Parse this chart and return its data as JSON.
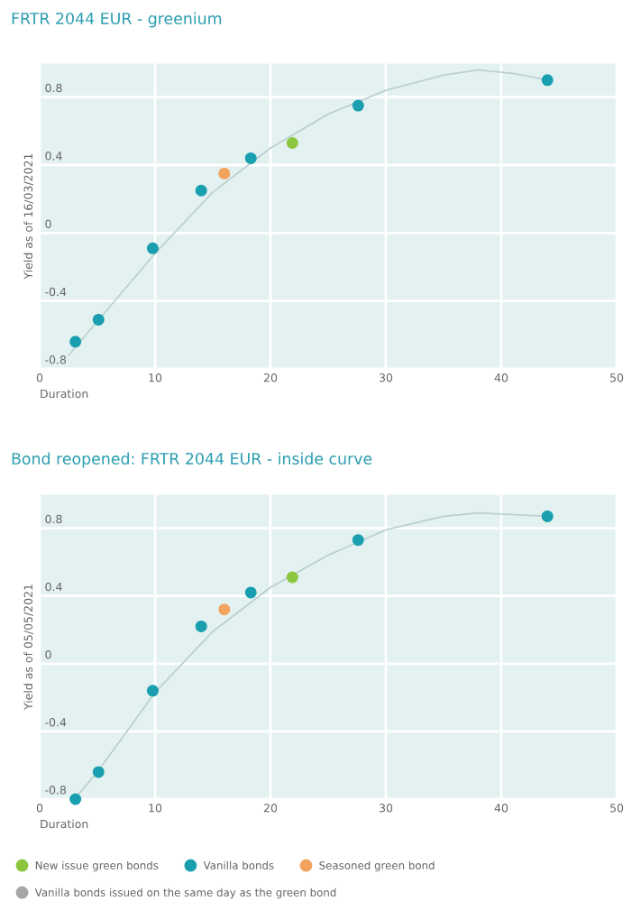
{
  "chart_data": [
    {
      "type": "scatter",
      "title": "FRTR 2044 EUR - greenium",
      "xlabel": "Duration",
      "ylabel": "Yield as of 16/03/2021",
      "xlim": [
        0,
        50
      ],
      "xticks": [
        0,
        10,
        20,
        30,
        40,
        50
      ],
      "ylim": [
        -0.8,
        1.0
      ],
      "yticks": [
        -0.8,
        -0.4,
        0,
        0.4,
        0.8
      ],
      "grid": true,
      "legend": false,
      "marker": "circle",
      "series": [
        {
          "type": "line",
          "marker": "none",
          "color": "#b9cfcf",
          "line_style": "solid",
          "x": [
            2.5,
            5,
            10,
            15,
            20,
            25,
            30,
            35,
            38,
            41,
            44
          ],
          "values": [
            -0.72,
            -0.52,
            -0.12,
            0.24,
            0.5,
            0.7,
            0.84,
            0.93,
            0.96,
            0.94,
            0.9
          ]
        },
        {
          "color": "#8cc63f",
          "x": [
            21.9
          ],
          "values": [
            0.53
          ]
        },
        {
          "color": "#1a9fb0",
          "x": [
            3.1,
            5.1,
            9.8,
            14.0,
            18.3,
            27.6,
            44.0
          ],
          "values": [
            -0.64,
            -0.51,
            -0.09,
            0.25,
            0.44,
            0.75,
            0.9
          ]
        },
        {
          "color": "#f2a35e",
          "x": [
            16.0
          ],
          "values": [
            0.35
          ]
        }
      ]
    },
    {
      "type": "scatter",
      "title": "Bond reopened: FRTR 2044 EUR - inside curve",
      "xlabel": "Duration",
      "ylabel": "Yield as of 05/05/2021",
      "xlim": [
        0,
        50
      ],
      "xticks": [
        0,
        10,
        20,
        30,
        40,
        50
      ],
      "ylim": [
        -0.8,
        1.0
      ],
      "yticks": [
        -0.8,
        -0.4,
        0,
        0.4,
        0.8
      ],
      "grid": true,
      "legend": "bottom",
      "marker": "circle",
      "series": [
        {
          "type": "line",
          "marker": "none",
          "color": "#b9cfcf",
          "line_style": "solid",
          "x": [
            3,
            5,
            10,
            15,
            20,
            25,
            30,
            35,
            38,
            41,
            44
          ],
          "values": [
            -0.8,
            -0.64,
            -0.17,
            0.19,
            0.45,
            0.64,
            0.79,
            0.87,
            0.89,
            0.88,
            0.87
          ]
        },
        {
          "name": "New issue green bonds",
          "color": "#8cc63f",
          "x": [
            21.9
          ],
          "values": [
            0.51
          ]
        },
        {
          "name": "Vanilla bonds",
          "color": "#1a9fb0",
          "x": [
            3.1,
            5.1,
            9.8,
            14.0,
            18.3,
            27.6,
            44.0
          ],
          "values": [
            -0.8,
            -0.64,
            -0.16,
            0.22,
            0.42,
            0.73,
            0.87
          ]
        },
        {
          "name": "Seasoned green bond",
          "color": "#f2a35e",
          "x": [
            16.0
          ],
          "values": [
            0.32
          ]
        },
        {
          "name": "Vanilla bonds issued on the same day as the green bond",
          "color": "#a6a6a6"
        }
      ]
    }
  ]
}
